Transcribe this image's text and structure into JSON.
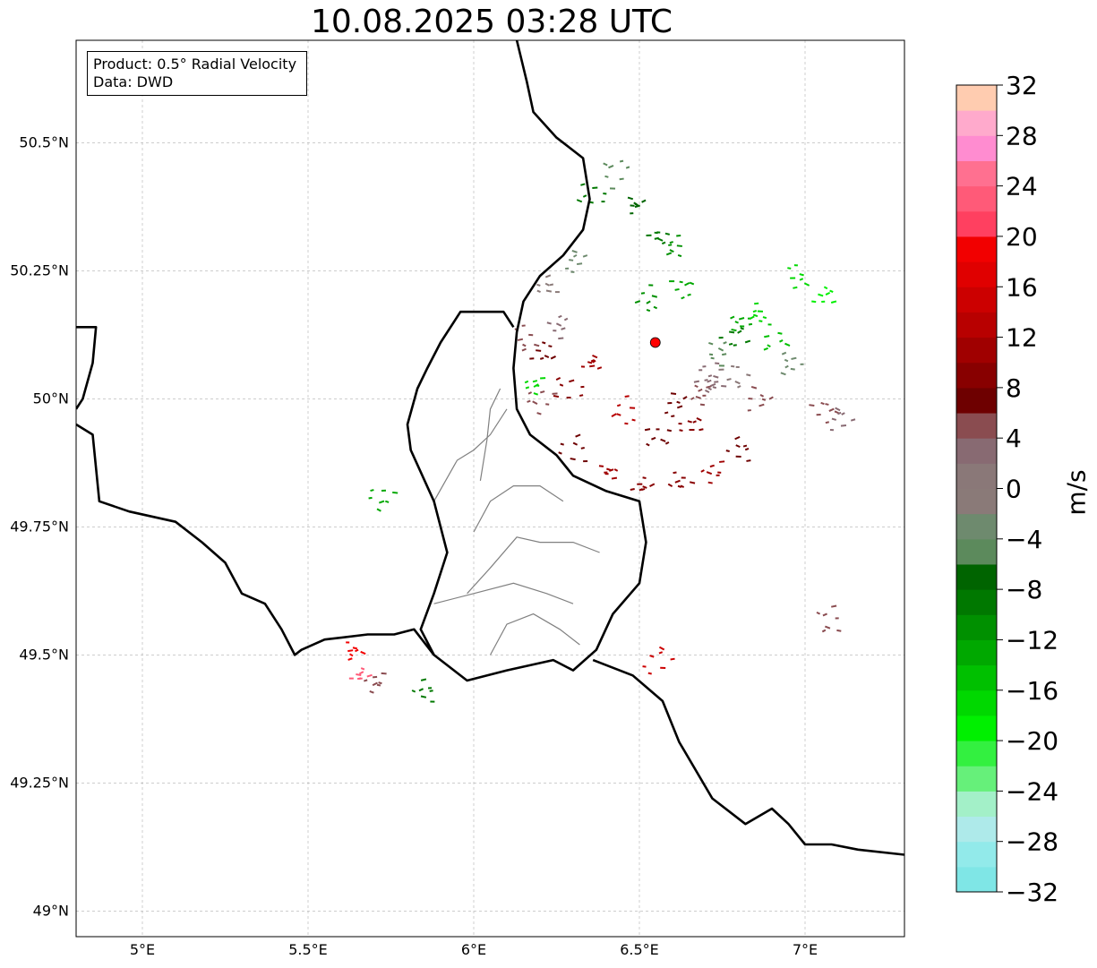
{
  "title": "10.08.2025 03:28 UTC",
  "info_box": {
    "product_line": "Product: 0.5° Radial Velocity",
    "data_line": "Data: DWD"
  },
  "map": {
    "lon_range": [
      4.8,
      7.3
    ],
    "lat_range": [
      48.95,
      50.7
    ],
    "lon_ticks": [
      {
        "value": 5.0,
        "label": "5°E"
      },
      {
        "value": 5.5,
        "label": "5.5°E"
      },
      {
        "value": 6.0,
        "label": "6°E"
      },
      {
        "value": 6.5,
        "label": "6.5°E"
      },
      {
        "value": 7.0,
        "label": "7°E"
      }
    ],
    "lat_ticks": [
      {
        "value": 49.0,
        "label": "49°N"
      },
      {
        "value": 49.25,
        "label": "49.25°N"
      },
      {
        "value": 49.5,
        "label": "49.5°N"
      },
      {
        "value": 49.75,
        "label": "49.75°N"
      },
      {
        "value": 50.0,
        "label": "50°N"
      },
      {
        "value": 50.25,
        "label": "50.25°N"
      },
      {
        "value": 50.5,
        "label": "50.5°N"
      }
    ],
    "radar_site": {
      "lon": 6.548,
      "lat": 50.11
    },
    "colors": {
      "border": "#000000",
      "admin": "#808080",
      "grid": "#b0b0b0",
      "radar_marker": "#ff0000"
    },
    "echoes": [
      {
        "lon": 6.35,
        "lat": 50.07,
        "value": 10
      },
      {
        "lon": 6.28,
        "lat": 50.02,
        "value": 8
      },
      {
        "lon": 6.45,
        "lat": 49.98,
        "value": 12
      },
      {
        "lon": 6.55,
        "lat": 49.93,
        "value": 6
      },
      {
        "lon": 6.6,
        "lat": 49.99,
        "value": 7
      },
      {
        "lon": 6.65,
        "lat": 49.95,
        "value": 9
      },
      {
        "lon": 6.68,
        "lat": 50.01,
        "value": 5
      },
      {
        "lon": 6.72,
        "lat": 50.03,
        "value": 3
      },
      {
        "lon": 6.78,
        "lat": 50.05,
        "value": 1
      },
      {
        "lon": 6.85,
        "lat": 50.0,
        "value": 4
      },
      {
        "lon": 6.8,
        "lat": 49.9,
        "value": 6
      },
      {
        "lon": 6.72,
        "lat": 49.86,
        "value": 10
      },
      {
        "lon": 6.62,
        "lat": 49.84,
        "value": 8
      },
      {
        "lon": 6.5,
        "lat": 49.83,
        "value": 9
      },
      {
        "lon": 6.4,
        "lat": 49.86,
        "value": 11
      },
      {
        "lon": 6.3,
        "lat": 49.9,
        "value": 7
      },
      {
        "lon": 6.2,
        "lat": 50.0,
        "value": 5
      },
      {
        "lon": 6.15,
        "lat": 50.12,
        "value": 4
      },
      {
        "lon": 6.2,
        "lat": 50.09,
        "value": 6
      },
      {
        "lon": 6.25,
        "lat": 50.14,
        "value": 3
      },
      {
        "lon": 6.8,
        "lat": 50.15,
        "value": -14
      },
      {
        "lon": 6.85,
        "lat": 50.17,
        "value": -18
      },
      {
        "lon": 6.9,
        "lat": 50.12,
        "value": -16
      },
      {
        "lon": 6.78,
        "lat": 50.12,
        "value": -10
      },
      {
        "lon": 6.73,
        "lat": 50.09,
        "value": -6
      },
      {
        "lon": 6.95,
        "lat": 50.07,
        "value": -4
      },
      {
        "lon": 6.6,
        "lat": 50.3,
        "value": -12
      },
      {
        "lon": 6.55,
        "lat": 50.32,
        "value": -10
      },
      {
        "lon": 6.48,
        "lat": 50.38,
        "value": -8
      },
      {
        "lon": 6.42,
        "lat": 50.44,
        "value": -6
      },
      {
        "lon": 6.35,
        "lat": 50.4,
        "value": -9
      },
      {
        "lon": 6.52,
        "lat": 50.2,
        "value": -11
      },
      {
        "lon": 6.62,
        "lat": 50.22,
        "value": -13
      },
      {
        "lon": 6.3,
        "lat": 50.27,
        "value": -3
      },
      {
        "lon": 6.22,
        "lat": 50.22,
        "value": -2
      },
      {
        "lon": 6.18,
        "lat": 50.03,
        "value": -17
      },
      {
        "lon": 6.7,
        "lat": 50.05,
        "value": 2
      },
      {
        "lon": 7.05,
        "lat": 49.98,
        "value": 5
      },
      {
        "lon": 7.1,
        "lat": 49.96,
        "value": 3
      },
      {
        "lon": 5.85,
        "lat": 49.43,
        "value": -10
      },
      {
        "lon": 5.7,
        "lat": 49.45,
        "value": 4
      },
      {
        "lon": 5.63,
        "lat": 49.51,
        "value": 18
      },
      {
        "lon": 5.65,
        "lat": 49.46,
        "value": 22
      },
      {
        "lon": 6.55,
        "lat": 49.49,
        "value": 14
      },
      {
        "lon": 7.07,
        "lat": 49.57,
        "value": 5
      },
      {
        "lon": 5.72,
        "lat": 49.81,
        "value": -14
      },
      {
        "lon": 6.97,
        "lat": 50.24,
        "value": -18
      },
      {
        "lon": 7.05,
        "lat": 50.2,
        "value": -20
      }
    ],
    "borders": [
      [
        [
          6.13,
          50.7
        ],
        [
          6.16,
          50.62
        ],
        [
          6.18,
          50.56
        ],
        [
          6.25,
          50.51
        ],
        [
          6.33,
          50.47
        ],
        [
          6.35,
          50.39
        ],
        [
          6.33,
          50.33
        ],
        [
          6.27,
          50.28
        ],
        [
          6.2,
          50.24
        ],
        [
          6.15,
          50.19
        ],
        [
          6.13,
          50.13
        ],
        [
          6.12,
          50.06
        ],
        [
          6.13,
          49.98
        ],
        [
          6.17,
          49.93
        ],
        [
          6.25,
          49.89
        ],
        [
          6.3,
          49.85
        ],
        [
          6.4,
          49.82
        ],
        [
          6.5,
          49.8
        ],
        [
          6.52,
          49.72
        ],
        [
          6.5,
          49.64
        ],
        [
          6.42,
          49.58
        ],
        [
          6.37,
          49.51
        ],
        [
          6.3,
          49.47
        ],
        [
          6.24,
          49.49
        ],
        [
          6.1,
          49.47
        ],
        [
          5.98,
          49.45
        ],
        [
          5.88,
          49.5
        ],
        [
          5.82,
          49.55
        ],
        [
          5.76,
          49.54
        ],
        [
          5.68,
          49.54
        ],
        [
          5.55,
          49.53
        ],
        [
          5.48,
          49.51
        ],
        [
          5.46,
          49.5
        ],
        [
          5.42,
          49.55
        ],
        [
          5.37,
          49.6
        ],
        [
          5.3,
          49.62
        ],
        [
          5.25,
          49.68
        ],
        [
          5.18,
          49.72
        ],
        [
          5.1,
          49.76
        ],
        [
          4.96,
          49.78
        ],
        [
          4.87,
          49.8
        ],
        [
          4.85,
          49.93
        ],
        [
          4.8,
          49.95
        ]
      ],
      [
        [
          5.88,
          49.5
        ],
        [
          5.84,
          49.55
        ],
        [
          5.88,
          49.62
        ],
        [
          5.92,
          49.7
        ],
        [
          5.88,
          49.8
        ],
        [
          5.81,
          49.9
        ],
        [
          5.8,
          49.95
        ],
        [
          5.83,
          50.02
        ],
        [
          5.86,
          50.06
        ],
        [
          5.9,
          50.11
        ],
        [
          5.96,
          50.17
        ],
        [
          6.03,
          50.17
        ],
        [
          6.09,
          50.17
        ],
        [
          6.12,
          50.14
        ]
      ],
      [
        [
          6.36,
          49.49
        ],
        [
          6.48,
          49.46
        ],
        [
          6.57,
          49.41
        ],
        [
          6.62,
          49.33
        ],
        [
          6.72,
          49.22
        ],
        [
          6.82,
          49.17
        ],
        [
          6.9,
          49.2
        ],
        [
          6.95,
          49.17
        ],
        [
          7.0,
          49.13
        ],
        [
          7.08,
          49.13
        ],
        [
          7.16,
          49.12
        ],
        [
          7.3,
          49.11
        ]
      ],
      [
        [
          4.8,
          50.14
        ],
        [
          4.86,
          50.14
        ],
        [
          4.85,
          50.07
        ],
        [
          4.82,
          50.0
        ],
        [
          4.8,
          49.98
        ]
      ]
    ],
    "admin_lines": [
      [
        [
          5.88,
          49.8
        ],
        [
          5.95,
          49.88
        ],
        [
          6.0,
          49.9
        ],
        [
          6.05,
          49.93
        ],
        [
          6.1,
          49.98
        ]
      ],
      [
        [
          6.0,
          49.74
        ],
        [
          6.05,
          49.8
        ],
        [
          6.12,
          49.83
        ],
        [
          6.2,
          49.83
        ],
        [
          6.27,
          49.8
        ]
      ],
      [
        [
          5.98,
          49.62
        ],
        [
          6.05,
          49.67
        ],
        [
          6.13,
          49.73
        ],
        [
          6.2,
          49.72
        ],
        [
          6.3,
          49.72
        ],
        [
          6.38,
          49.7
        ]
      ],
      [
        [
          5.88,
          49.6
        ],
        [
          6.0,
          49.62
        ],
        [
          6.12,
          49.64
        ],
        [
          6.22,
          49.62
        ],
        [
          6.3,
          49.6
        ]
      ],
      [
        [
          6.05,
          49.5
        ],
        [
          6.1,
          49.56
        ],
        [
          6.18,
          49.58
        ],
        [
          6.26,
          49.55
        ],
        [
          6.32,
          49.52
        ]
      ],
      [
        [
          6.02,
          49.84
        ],
        [
          6.04,
          49.92
        ],
        [
          6.05,
          49.98
        ],
        [
          6.08,
          50.02
        ]
      ]
    ]
  },
  "colorbar": {
    "units": "m/s",
    "min": -32,
    "max": 32,
    "step": 4,
    "tick_labels": [
      "32",
      "28",
      "24",
      "20",
      "16",
      "12",
      "8",
      "4",
      "0",
      "−4",
      "−8",
      "−12",
      "−16",
      "−20",
      "−24",
      "−28",
      "−32"
    ],
    "colors_bottom_to_top": [
      "#7fe6e6",
      "#92eaea",
      "#aeeaea",
      "#a3f0c8",
      "#66f07a",
      "#33f040",
      "#00f000",
      "#00d800",
      "#00c000",
      "#00a800",
      "#009000",
      "#007800",
      "#006400",
      "#5c8a5c",
      "#6e8a6e",
      "#8a7a78",
      "#8a7878",
      "#886a72",
      "#8a4c50",
      "#6e0000",
      "#880000",
      "#a00000",
      "#b80000",
      "#cc0000",
      "#e00000",
      "#f20000",
      "#ff4060",
      "#ff5a78",
      "#ff7090",
      "#ff8cd0",
      "#ffaacc",
      "#ffccb0"
    ]
  }
}
